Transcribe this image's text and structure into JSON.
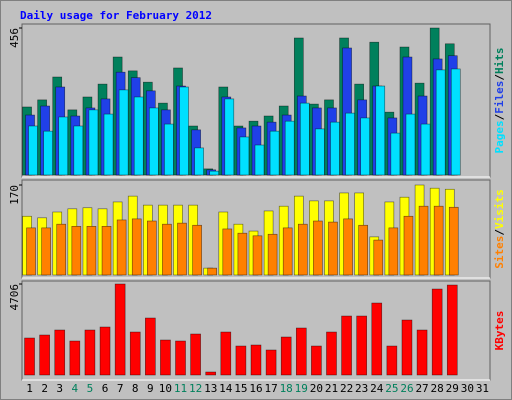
{
  "chart_data": {
    "type": "bar",
    "title": "Daily usage for February 2012",
    "categories": [
      "1",
      "2",
      "3",
      "4",
      "5",
      "6",
      "7",
      "8",
      "9",
      "10",
      "11",
      "12",
      "13",
      "14",
      "15",
      "16",
      "17",
      "18",
      "19",
      "20",
      "21",
      "22",
      "23",
      "24",
      "25",
      "26",
      "27",
      "28",
      "29",
      "30",
      "31"
    ],
    "category_colors": [
      "#000000",
      "#000000",
      "#000000",
      "#00805c",
      "#00805c",
      "#000000",
      "#000000",
      "#000000",
      "#000000",
      "#000000",
      "#00805c",
      "#00805c",
      "#000000",
      "#000000",
      "#000000",
      "#000000",
      "#000000",
      "#00805c",
      "#00805c",
      "#000000",
      "#000000",
      "#000000",
      "#000000",
      "#000000",
      "#00805c",
      "#00805c",
      "#000000",
      "#000000",
      "#000000",
      "#000000",
      "#000000"
    ],
    "legend_separator": "/",
    "panels": [
      {
        "ylim": [
          0,
          456
        ],
        "yticks": [
          456
        ],
        "series": [
          {
            "name": "Hits",
            "color": "#00805c",
            "values": [
              211,
              233,
              304,
              202,
              242,
              282,
              366,
              323,
              288,
              223,
              332,
              152,
              19,
              273,
              152,
              167,
              183,
              214,
              425,
              220,
              233,
              425,
              282,
              412,
              195,
              397,
              285,
              456,
              407,
              null,
              null
            ]
          },
          {
            "name": "Files",
            "color": "#2040e8",
            "values": [
              186,
              214,
              273,
              183,
              208,
              236,
              319,
              302,
              261,
              202,
              276,
              140,
              16,
              242,
              146,
              152,
              164,
              186,
              245,
              208,
              208,
              394,
              233,
              276,
              177,
              366,
              245,
              360,
              370,
              null,
              null
            ]
          },
          {
            "name": "Pages",
            "color": "#00e0ff",
            "values": [
              152,
              136,
              180,
              152,
              202,
              189,
              264,
              242,
              208,
              158,
              273,
              84,
              12,
              236,
              118,
              93,
              136,
              167,
              223,
              143,
              164,
              192,
              177,
              276,
              130,
              189,
              158,
              326,
              329,
              null,
              null
            ]
          }
        ]
      },
      {
        "ylim": [
          0,
          170
        ],
        "yticks": [
          170
        ],
        "series": [
          {
            "name": "Visits",
            "color": "#ffff00",
            "values": [
              111,
              108,
              119,
              125,
              127,
              125,
              138,
              149,
              132,
              132,
              132,
              132,
              13,
              119,
              96,
              83,
              121,
              130,
              149,
              140,
              140,
              155,
              155,
              72,
              138,
              147,
              170,
              164,
              162,
              null,
              null
            ]
          },
          {
            "name": "Sites",
            "color": "#ff8000",
            "values": [
              89,
              89,
              96,
              92,
              92,
              92,
              104,
              106,
              102,
              96,
              98,
              94,
              13,
              87,
              79,
              74,
              77,
              89,
              96,
              102,
              100,
              106,
              94,
              66,
              89,
              111,
              130,
              130,
              128,
              null,
              null
            ]
          }
        ]
      },
      {
        "ylim": [
          0,
          4706
        ],
        "yticks": [
          4706
        ],
        "series": [
          {
            "name": "KBytes",
            "color": "#ff0000",
            "values": [
              1913,
              2068,
              2327,
              1758,
              2327,
              2482,
              4706,
              2223,
              2947,
              1810,
              1758,
              2120,
              155,
              2223,
              1499,
              1551,
              1293,
              1965,
              2430,
              1499,
              2223,
              3050,
              3050,
              3722,
              1499,
              2844,
              2327,
              4446,
              4653,
              null,
              null
            ]
          }
        ]
      }
    ]
  }
}
